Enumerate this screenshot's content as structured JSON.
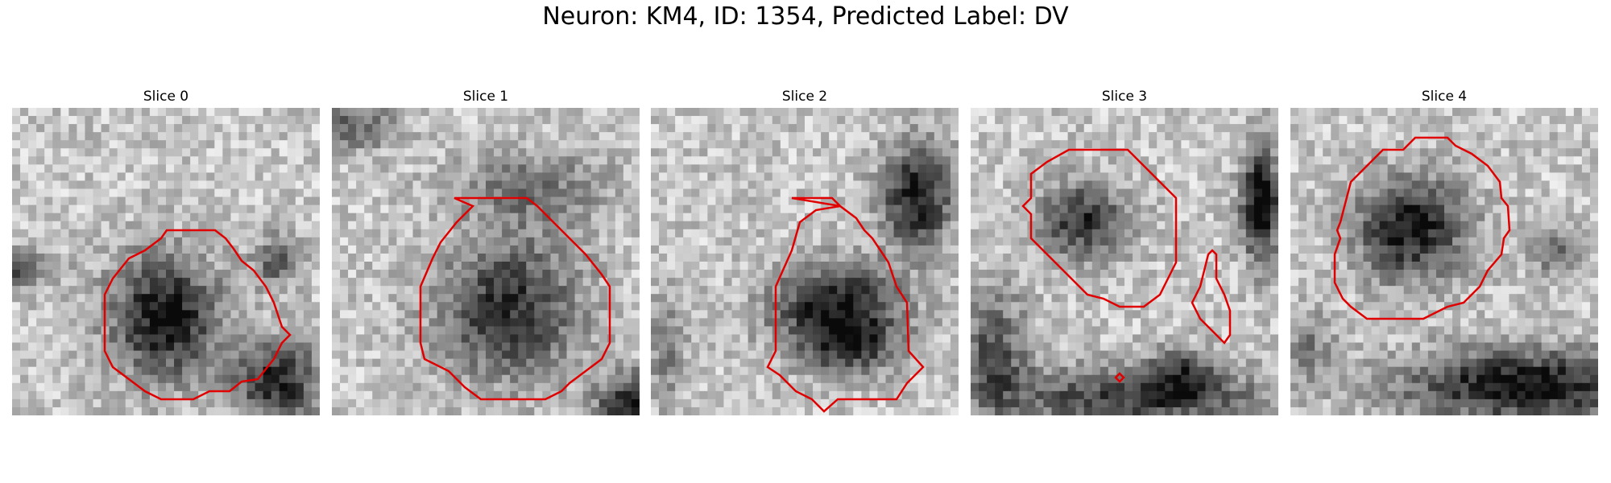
{
  "figure": {
    "title": "Neuron: KM4, ID: 1354, Predicted Label: DV",
    "contour_color": "#e00000"
  },
  "panels": [
    {
      "title": "Slice 0"
    },
    {
      "title": "Slice 1"
    },
    {
      "title": "Slice 2"
    },
    {
      "title": "Slice 3"
    },
    {
      "title": "Slice 4"
    }
  ]
}
